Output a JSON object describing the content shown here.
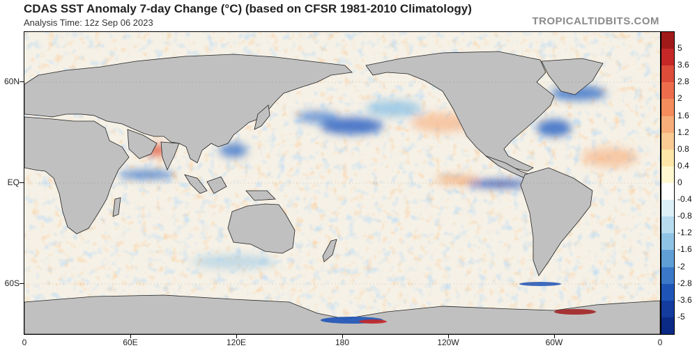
{
  "title": "CDAS SST Anomaly 7-day Change (°C) (based on CFSR 1981-2010 Climatology)",
  "subtitle": "Analysis Time: 12z Sep 06 2023",
  "brand": "TROPICALTIDBITS.COM",
  "map": {
    "lat_labels": [
      "60N",
      "EQ",
      "60S"
    ],
    "lon_labels": [
      "0",
      "60E",
      "120E",
      "180",
      "120W",
      "60W",
      "0"
    ],
    "land_color": "#c0c0c0",
    "ocean_neutral": "#f4f4f0"
  },
  "colorbar": {
    "labels": [
      "5",
      "3.6",
      "2.8",
      "2",
      "1.6",
      "1.2",
      "0.8",
      "0.4",
      "0",
      "-0.4",
      "-0.8",
      "-1.2",
      "-1.6",
      "-2",
      "-2.8",
      "-3.6",
      "-5"
    ],
    "colors": [
      "#a11a1a",
      "#c62828",
      "#dd4b39",
      "#ec6c4c",
      "#f48c5c",
      "#f7ad79",
      "#fbcb93",
      "#fde6a8",
      "#fff7cf",
      "#ffffff",
      "#dcf0f8",
      "#b7dcf0",
      "#8fc3e6",
      "#5f9fd6",
      "#3b78c8",
      "#1f54b7",
      "#143b9e",
      "#0b2a86"
    ]
  }
}
